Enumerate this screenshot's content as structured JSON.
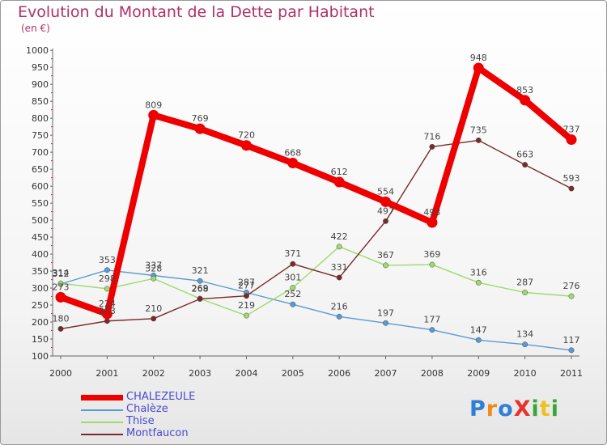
{
  "header": {
    "title": "Evolution du Montant de la Dette par Habitant",
    "subtitle": "(en €)"
  },
  "logo": {
    "text": "ProXiti"
  },
  "chart_data": {
    "type": "line",
    "title": "Evolution du Montant de la Dette par Habitant",
    "subtitle": "(en €)",
    "x": [
      "2000",
      "2001",
      "2002",
      "2003",
      "2004",
      "2005",
      "2006",
      "2007",
      "2008",
      "2009",
      "2010",
      "2011"
    ],
    "ylim": [
      100,
      1000
    ],
    "yticks": [
      "100",
      "150",
      "200",
      "250",
      "300",
      "350",
      "400",
      "450",
      "500",
      "550",
      "600",
      "650",
      "700",
      "750",
      "800",
      "850",
      "900",
      "950",
      "1000"
    ],
    "grid": false,
    "legend_position": "bottom-left",
    "series": [
      {
        "name": "CHALEZEULE",
        "color": "#ee0000",
        "values": [
          273,
          224,
          809,
          769,
          720,
          668,
          612,
          554,
          493,
          948,
          853,
          737
        ]
      },
      {
        "name": "Chalèze",
        "color": "#5a9bd4",
        "values": [
          312,
          353,
          337,
          321,
          287,
          252,
          216,
          197,
          177,
          147,
          134,
          117
        ]
      },
      {
        "name": "Thise",
        "color": "#9edb6c",
        "values": [
          314,
          298,
          328,
          269,
          219,
          301,
          422,
          367,
          369,
          316,
          287,
          276
        ]
      },
      {
        "name": "Montfaucon",
        "color": "#7a2a2a",
        "values": [
          180,
          203,
          210,
          268,
          277,
          371,
          331,
          497,
          716,
          735,
          663,
          593
        ]
      }
    ]
  }
}
